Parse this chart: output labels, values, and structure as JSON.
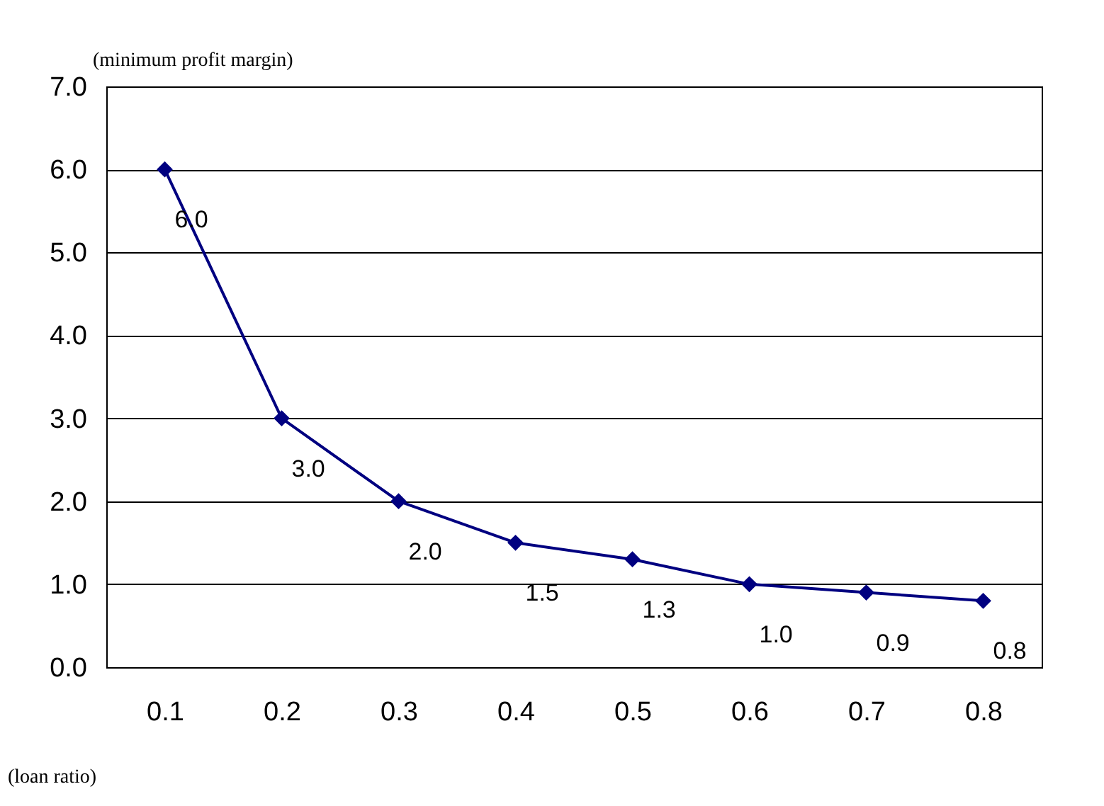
{
  "chart_data": {
    "type": "line",
    "xlabel": "(loan ratio)",
    "ylabel": "(minimum profit margin)",
    "categories": [
      "0.1",
      "0.2",
      "0.3",
      "0.4",
      "0.5",
      "0.6",
      "0.7",
      "0.8"
    ],
    "series": [
      {
        "color": "#000080",
        "values": [
          6.0,
          3.0,
          2.0,
          1.5,
          1.3,
          1.0,
          0.9,
          0.8
        ],
        "value_labels": [
          "6.0",
          "3.0",
          "2.0",
          "1.5",
          "1.3",
          "1.0",
          "0.9",
          "0.8"
        ]
      }
    ],
    "ylim": [
      0,
      7
    ],
    "yticks": [
      {
        "value": 0,
        "label": "0.0"
      },
      {
        "value": 1,
        "label": "1.0"
      },
      {
        "value": 2,
        "label": "2.0"
      },
      {
        "value": 3,
        "label": "3.0"
      },
      {
        "value": 4,
        "label": "4.0"
      },
      {
        "value": 5,
        "label": "5.0"
      },
      {
        "value": 6,
        "label": "6.0"
      },
      {
        "value": 7,
        "label": "7.0"
      }
    ],
    "grid": "y",
    "marker": "diamond",
    "line_style": "solid",
    "legend": false
  }
}
